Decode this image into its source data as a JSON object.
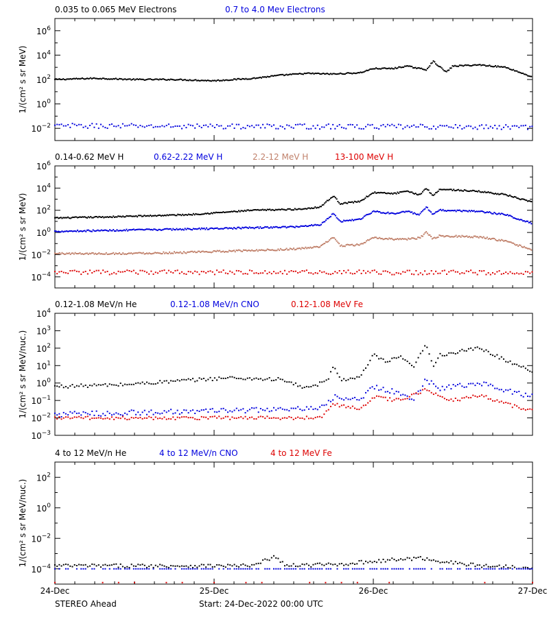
{
  "colors": {
    "black": "#000000",
    "blue": "#0000dd",
    "brown": "#c0806a",
    "red": "#dd0000"
  },
  "footer": {
    "spacecraft": "STEREO Ahead",
    "start": "Start: 24-Dec-2022 00:00 UTC"
  },
  "chart_data": [
    {
      "type": "scatter",
      "ylabel": "1/(cm² s sr MeV)",
      "yscale": "log",
      "ylim_exp": [
        -3,
        7
      ],
      "ytick_exps": [
        -2,
        0,
        2,
        4,
        6
      ],
      "xlim_hours": [
        0,
        72
      ],
      "xticks": [
        "24-Dec",
        "25-Dec",
        "26-Dec",
        "27-Dec"
      ],
      "series": [
        {
          "name": "0.035 to 0.065 MeV Electrons",
          "color": "black",
          "style": "line",
          "sigma": 0.05,
          "profile": [
            [
              0,
              2.0
            ],
            [
              6,
              2.1
            ],
            [
              12,
              2.0
            ],
            [
              18,
              2.0
            ],
            [
              24,
              1.9
            ],
            [
              30,
              2.1
            ],
            [
              34,
              2.35
            ],
            [
              38,
              2.5
            ],
            [
              42,
              2.45
            ],
            [
              46,
              2.55
            ],
            [
              48,
              2.9
            ],
            [
              51,
              2.9
            ],
            [
              53,
              3.1
            ],
            [
              56,
              2.8
            ],
            [
              57,
              3.5
            ],
            [
              59,
              2.6
            ],
            [
              60,
              3.1
            ],
            [
              64,
              3.2
            ],
            [
              68,
              3.0
            ],
            [
              72,
              2.2
            ]
          ]
        },
        {
          "name": "0.7 to 4.0 Mev Electrons",
          "color": "blue",
          "style": "dots",
          "sigma": 0.2,
          "profile": [
            [
              0,
              -1.8
            ],
            [
              72,
              -1.9
            ]
          ]
        }
      ]
    },
    {
      "type": "scatter",
      "ylabel": "1/(cm² s sr MeV)",
      "yscale": "log",
      "ylim_exp": [
        -5,
        6
      ],
      "ytick_exps": [
        -4,
        -2,
        0,
        2,
        4,
        6
      ],
      "xlim_hours": [
        0,
        72
      ],
      "xticks": [
        "24-Dec",
        "25-Dec",
        "26-Dec",
        "27-Dec"
      ],
      "series": [
        {
          "name": "0.14-0.62 MeV H",
          "color": "black",
          "style": "line",
          "sigma": 0.06,
          "profile": [
            [
              0,
              1.3
            ],
            [
              8,
              1.4
            ],
            [
              14,
              1.5
            ],
            [
              20,
              1.6
            ],
            [
              30,
              2.0
            ],
            [
              37,
              2.1
            ],
            [
              40,
              2.3
            ],
            [
              42,
              3.3
            ],
            [
              43,
              2.6
            ],
            [
              46,
              2.8
            ],
            [
              48,
              3.6
            ],
            [
              51,
              3.5
            ],
            [
              53,
              3.7
            ],
            [
              55,
              3.4
            ],
            [
              56,
              4.0
            ],
            [
              57,
              3.3
            ],
            [
              58,
              3.9
            ],
            [
              64,
              3.7
            ],
            [
              68,
              3.4
            ],
            [
              72,
              2.7
            ]
          ]
        },
        {
          "name": "0.62-2.22 MeV H",
          "color": "blue",
          "style": "line",
          "sigma": 0.07,
          "profile": [
            [
              0,
              0.1
            ],
            [
              10,
              0.2
            ],
            [
              20,
              0.3
            ],
            [
              36,
              0.5
            ],
            [
              40,
              0.7
            ],
            [
              42,
              1.7
            ],
            [
              43,
              1.0
            ],
            [
              46,
              1.2
            ],
            [
              48,
              1.9
            ],
            [
              51,
              1.7
            ],
            [
              53,
              1.9
            ],
            [
              55,
              1.6
            ],
            [
              56,
              2.3
            ],
            [
              57,
              1.6
            ],
            [
              58,
              2.0
            ],
            [
              64,
              1.9
            ],
            [
              68,
              1.6
            ],
            [
              72,
              0.8
            ]
          ]
        },
        {
          "name": "2.2-12 MeV H",
          "color": "brown",
          "style": "line",
          "sigma": 0.08,
          "profile": [
            [
              0,
              -1.9
            ],
            [
              10,
              -1.9
            ],
            [
              20,
              -1.8
            ],
            [
              36,
              -1.5
            ],
            [
              40,
              -1.3
            ],
            [
              42,
              -0.4
            ],
            [
              43,
              -1.2
            ],
            [
              46,
              -1.1
            ],
            [
              48,
              -0.5
            ],
            [
              51,
              -0.6
            ],
            [
              53,
              -0.6
            ],
            [
              55,
              -0.5
            ],
            [
              56,
              0.0
            ],
            [
              57,
              -0.6
            ],
            [
              58,
              -0.3
            ],
            [
              64,
              -0.4
            ],
            [
              68,
              -0.8
            ],
            [
              72,
              -1.6
            ]
          ]
        },
        {
          "name": "13-100 MeV H",
          "color": "red",
          "style": "dots",
          "sigma": 0.2,
          "profile": [
            [
              0,
              -3.6
            ],
            [
              72,
              -3.6
            ]
          ]
        }
      ]
    },
    {
      "type": "scatter",
      "ylabel": "1/(cm² s sr MeV/nuc.)",
      "yscale": "log",
      "ylim_exp": [
        -3,
        4
      ],
      "ytick_exps": [
        -3,
        -2,
        -1,
        0,
        1,
        2,
        3,
        4
      ],
      "xlim_hours": [
        0,
        72
      ],
      "xticks": [
        "24-Dec",
        "25-Dec",
        "26-Dec",
        "27-Dec"
      ],
      "series": [
        {
          "name": "0.12-1.08 MeV/n He",
          "color": "black",
          "style": "dots",
          "sigma": 0.1,
          "profile": [
            [
              0,
              -0.2
            ],
            [
              10,
              -0.1
            ],
            [
              18,
              0.1
            ],
            [
              26,
              0.3
            ],
            [
              34,
              0.2
            ],
            [
              38,
              -0.3
            ],
            [
              41,
              0.1
            ],
            [
              42,
              1.0
            ],
            [
              43,
              0.2
            ],
            [
              46,
              0.3
            ],
            [
              48,
              1.6
            ],
            [
              50,
              1.2
            ],
            [
              52,
              1.5
            ],
            [
              54,
              0.9
            ],
            [
              56,
              2.2
            ],
            [
              57,
              1.0
            ],
            [
              58,
              1.6
            ],
            [
              64,
              2.0
            ],
            [
              68,
              1.3
            ],
            [
              72,
              0.7
            ]
          ]
        },
        {
          "name": "0.12-1.08 MeV/n CNO",
          "color": "blue",
          "style": "dots",
          "sigma": 0.15,
          "profile": [
            [
              0,
              -1.8
            ],
            [
              36,
              -1.5
            ],
            [
              40,
              -1.5
            ],
            [
              42,
              -0.8
            ],
            [
              46,
              -1.0
            ],
            [
              48,
              -0.2
            ],
            [
              52,
              -0.6
            ],
            [
              54,
              -0.9
            ],
            [
              56,
              0.2
            ],
            [
              58,
              -0.3
            ],
            [
              64,
              0.0
            ],
            [
              68,
              -0.4
            ],
            [
              72,
              -0.8
            ]
          ]
        },
        {
          "name": "0.12-1.08 MeV Fe",
          "color": "red",
          "style": "dots",
          "sigma": 0.1,
          "profile": [
            [
              0,
              -2.0
            ],
            [
              40,
              -2.0
            ],
            [
              42,
              -1.2
            ],
            [
              46,
              -1.5
            ],
            [
              48,
              -0.8
            ],
            [
              52,
              -1.0
            ],
            [
              56,
              -0.4
            ],
            [
              60,
              -1.0
            ],
            [
              64,
              -0.7
            ],
            [
              68,
              -1.2
            ],
            [
              72,
              -1.6
            ]
          ]
        }
      ]
    },
    {
      "type": "scatter",
      "ylabel": "1/(cm² s sr MeV/nuc.)",
      "yscale": "log",
      "ylim_exp": [
        -5,
        3
      ],
      "ytick_exps": [
        -4,
        -2,
        0,
        2
      ],
      "xlim_hours": [
        0,
        72
      ],
      "xticks": [
        "24-Dec",
        "25-Dec",
        "26-Dec",
        "27-Dec"
      ],
      "series": [
        {
          "name": "4 to 12 MeV/n He",
          "color": "black",
          "style": "dots",
          "sigma": 0.12,
          "profile": [
            [
              0,
              -3.8
            ],
            [
              30,
              -3.8
            ],
            [
              33,
              -3.2
            ],
            [
              35,
              -3.8
            ],
            [
              43,
              -3.7
            ],
            [
              48,
              -3.5
            ],
            [
              55,
              -3.3
            ],
            [
              60,
              -3.6
            ],
            [
              64,
              -3.8
            ],
            [
              72,
              -3.9
            ]
          ]
        },
        {
          "name": "4 to 12 MeV/n CNO",
          "color": "blue",
          "style": "baseline",
          "sigma": 0.0,
          "profile": [
            [
              0,
              -4.0
            ],
            [
              72,
              -4.0
            ]
          ]
        },
        {
          "name": "4 to 12 MeV Fe",
          "color": "red",
          "style": "sparse",
          "sigma": 0.0,
          "profile": [
            [
              0,
              -4.9
            ],
            [
              72,
              -4.9
            ]
          ]
        }
      ]
    }
  ]
}
